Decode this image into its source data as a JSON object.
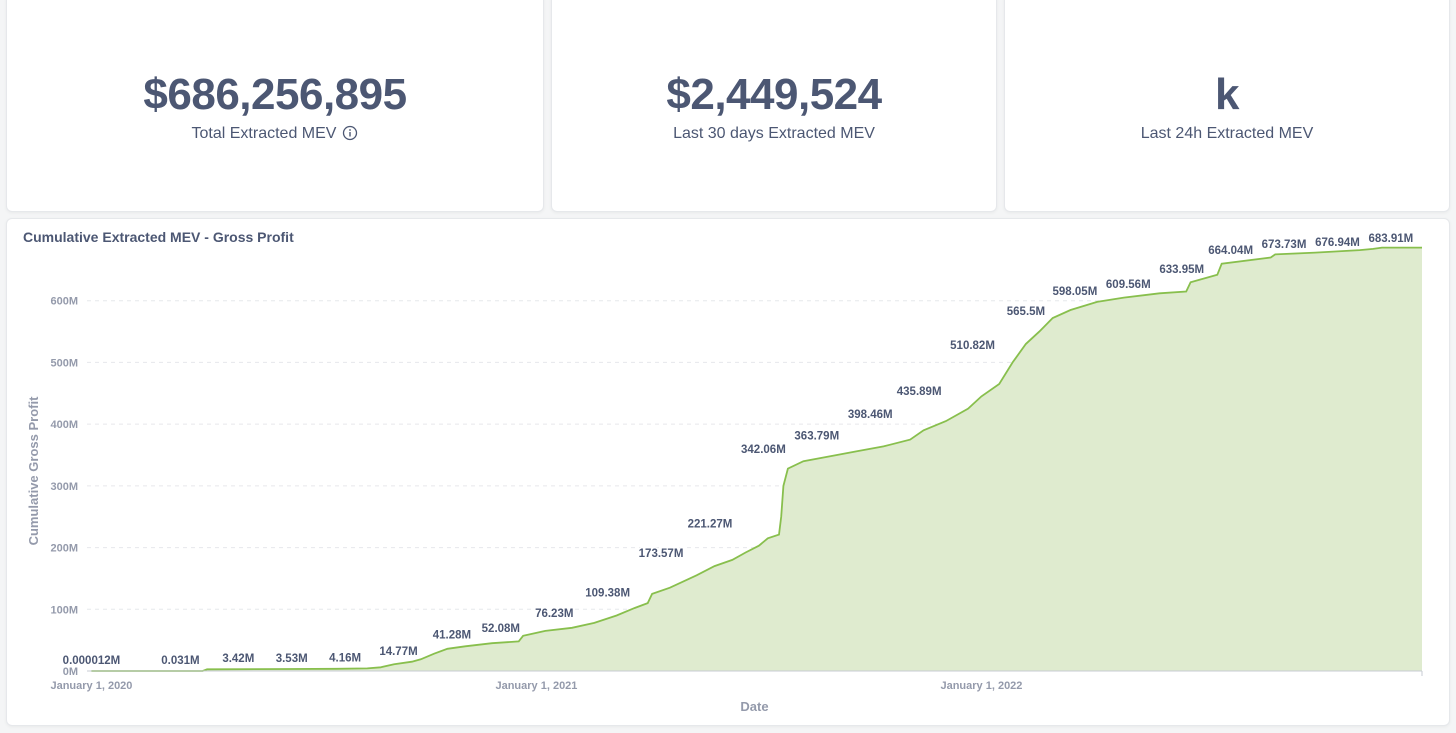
{
  "scalars": {
    "total": {
      "value": "$686,256,895",
      "label": "Total Extracted MEV"
    },
    "last30": {
      "value": "$2,449,524",
      "label": "Last 30 days Extracted MEV"
    },
    "last24h": {
      "value": "k",
      "label": "Last 24h Extracted MEV"
    }
  },
  "colors": {
    "line": "#88bf4d",
    "area": "#dfebcf",
    "text": "#4c5773",
    "muted": "#949aab",
    "grid": "#e6e8eb"
  },
  "chart_data": {
    "type": "area",
    "title": "Cumulative Extracted MEV - Gross Profit",
    "xlabel": "Date",
    "ylabel": "Cumulative Gross Profit",
    "ylim": [
      0,
      700
    ],
    "yticks": [
      0,
      100,
      200,
      300,
      400,
      500,
      600
    ],
    "ytick_labels": [
      "0M",
      "100M",
      "200M",
      "300M",
      "400M",
      "500M",
      "600M"
    ],
    "xlim": [
      2019.99,
      2022.99
    ],
    "xticks": [
      2020.0,
      2021.0,
      2022.0
    ],
    "xtick_labels": [
      "January 1, 2020",
      "January 1, 2021",
      "January 1, 2022"
    ],
    "grid": true,
    "series": [
      {
        "name": "Cumulative Gross Profit",
        "unit": "M",
        "points": [
          [
            2020.0,
            0
          ],
          [
            2020.25,
            0.05
          ],
          [
            2020.26,
            2.8
          ],
          [
            2020.45,
            3.3
          ],
          [
            2020.55,
            3.6
          ],
          [
            2020.62,
            4.2
          ],
          [
            2020.65,
            6
          ],
          [
            2020.68,
            11
          ],
          [
            2020.72,
            15
          ],
          [
            2020.74,
            19
          ],
          [
            2020.77,
            28
          ],
          [
            2020.8,
            36
          ],
          [
            2020.84,
            40
          ],
          [
            2020.9,
            45
          ],
          [
            2020.96,
            48
          ],
          [
            2020.97,
            57
          ],
          [
            2021.02,
            65
          ],
          [
            2021.08,
            70
          ],
          [
            2021.13,
            78
          ],
          [
            2021.18,
            90
          ],
          [
            2021.22,
            102
          ],
          [
            2021.25,
            110
          ],
          [
            2021.26,
            125
          ],
          [
            2021.3,
            135
          ],
          [
            2021.36,
            155
          ],
          [
            2021.4,
            170
          ],
          [
            2021.44,
            180
          ],
          [
            2021.47,
            192
          ],
          [
            2021.5,
            203
          ],
          [
            2021.52,
            215
          ],
          [
            2021.545,
            221
          ],
          [
            2021.55,
            250
          ],
          [
            2021.555,
            300
          ],
          [
            2021.565,
            328
          ],
          [
            2021.6,
            340
          ],
          [
            2021.66,
            348
          ],
          [
            2021.72,
            356
          ],
          [
            2021.78,
            364
          ],
          [
            2021.84,
            375
          ],
          [
            2021.87,
            390
          ],
          [
            2021.92,
            405
          ],
          [
            2021.97,
            425
          ],
          [
            2022.0,
            445
          ],
          [
            2022.04,
            465
          ],
          [
            2022.07,
            500
          ],
          [
            2022.1,
            530
          ],
          [
            2022.13,
            550
          ],
          [
            2022.16,
            572
          ],
          [
            2022.2,
            585
          ],
          [
            2022.26,
            598
          ],
          [
            2022.32,
            605
          ],
          [
            2022.4,
            612
          ],
          [
            2022.46,
            615
          ],
          [
            2022.47,
            630
          ],
          [
            2022.53,
            642
          ],
          [
            2022.54,
            660
          ],
          [
            2022.65,
            670
          ],
          [
            2022.66,
            675
          ],
          [
            2022.75,
            678
          ],
          [
            2022.85,
            682
          ],
          [
            2022.88,
            684
          ],
          [
            2022.9,
            686
          ],
          [
            2022.99,
            686
          ]
        ],
        "data_labels": [
          {
            "x": 2020.0,
            "y": 1.2e-05,
            "text": "0.000012M"
          },
          {
            "x": 2020.2,
            "y": 0.031,
            "text": "0.031M"
          },
          {
            "x": 2020.33,
            "y": 3.42,
            "text": "3.42M"
          },
          {
            "x": 2020.45,
            "y": 3.53,
            "text": "3.53M"
          },
          {
            "x": 2020.57,
            "y": 4.16,
            "text": "4.16M"
          },
          {
            "x": 2020.69,
            "y": 14.77,
            "text": "14.77M"
          },
          {
            "x": 2020.81,
            "y": 41.28,
            "text": "41.28M"
          },
          {
            "x": 2020.92,
            "y": 52.08,
            "text": "52.08M"
          },
          {
            "x": 2021.04,
            "y": 76.23,
            "text": "76.23M"
          },
          {
            "x": 2021.16,
            "y": 109.38,
            "text": "109.38M"
          },
          {
            "x": 2021.28,
            "y": 173.57,
            "text": "173.57M"
          },
          {
            "x": 2021.39,
            "y": 221.27,
            "text": "221.27M"
          },
          {
            "x": 2021.51,
            "y": 342.06,
            "text": "342.06M"
          },
          {
            "x": 2021.63,
            "y": 363.79,
            "text": "363.79M"
          },
          {
            "x": 2021.75,
            "y": 398.46,
            "text": "398.46M"
          },
          {
            "x": 2021.86,
            "y": 435.89,
            "text": "435.89M"
          },
          {
            "x": 2021.98,
            "y": 510.82,
            "text": "510.82M"
          },
          {
            "x": 2022.1,
            "y": 565.5,
            "text": "565.5M"
          },
          {
            "x": 2022.21,
            "y": 598.05,
            "text": "598.05M"
          },
          {
            "x": 2022.33,
            "y": 609.56,
            "text": "609.56M"
          },
          {
            "x": 2022.45,
            "y": 633.95,
            "text": "633.95M"
          },
          {
            "x": 2022.56,
            "y": 664.04,
            "text": "664.04M"
          },
          {
            "x": 2022.68,
            "y": 673.73,
            "text": "673.73M"
          },
          {
            "x": 2022.8,
            "y": 676.94,
            "text": "676.94M"
          },
          {
            "x": 2022.92,
            "y": 683.91,
            "text": "683.91M"
          }
        ]
      }
    ]
  }
}
